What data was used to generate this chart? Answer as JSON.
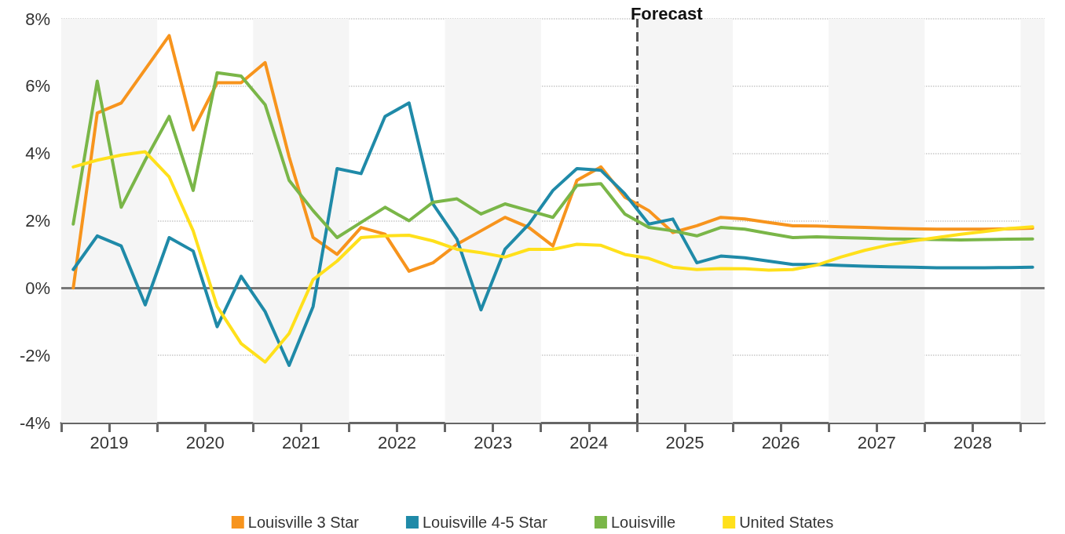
{
  "chart_data": {
    "type": "line",
    "x": [
      2019.125,
      2019.375,
      2019.625,
      2019.875,
      2020.125,
      2020.375,
      2020.625,
      2020.875,
      2021.125,
      2021.375,
      2021.625,
      2021.875,
      2022.125,
      2022.375,
      2022.625,
      2022.875,
      2023.125,
      2023.375,
      2023.625,
      2023.875,
      2024.125,
      2024.375,
      2024.625,
      2024.875,
      2025.125,
      2025.375,
      2025.625,
      2025.875,
      2026.125,
      2026.375,
      2026.625,
      2026.875,
      2027.125,
      2027.375,
      2027.625,
      2027.875,
      2028.125,
      2028.375,
      2028.625,
      2028.875,
      2029.125
    ],
    "series": [
      {
        "name": "Louisville 3 Star",
        "color": "#f7941d",
        "values": [
          0.0,
          5.2,
          5.5,
          6.5,
          7.5,
          4.7,
          6.1,
          6.1,
          6.7,
          3.9,
          1.5,
          1.0,
          1.8,
          1.6,
          0.5,
          0.75,
          1.3,
          1.7,
          2.1,
          1.8,
          1.25,
          3.2,
          3.6,
          2.7,
          2.3,
          1.65,
          1.85,
          2.1,
          2.05,
          1.95,
          1.85,
          1.84,
          1.82,
          1.8,
          1.78,
          1.76,
          1.75,
          1.75,
          1.75,
          1.76,
          1.78
        ]
      },
      {
        "name": "Louisville 4-5 Star",
        "color": "#1f8aa8",
        "values": [
          0.55,
          1.55,
          1.25,
          -0.5,
          1.5,
          1.1,
          -1.15,
          0.35,
          -0.7,
          -2.3,
          -0.55,
          3.55,
          3.4,
          5.1,
          5.5,
          2.5,
          1.45,
          -0.65,
          1.15,
          1.9,
          2.9,
          3.55,
          3.5,
          2.8,
          1.9,
          2.05,
          0.75,
          0.95,
          0.9,
          0.8,
          0.7,
          0.7,
          0.67,
          0.65,
          0.63,
          0.62,
          0.6,
          0.6,
          0.6,
          0.61,
          0.62
        ]
      },
      {
        "name": "Louisville",
        "color": "#7ab648",
        "values": [
          1.9,
          6.15,
          2.4,
          3.8,
          5.1,
          2.9,
          6.4,
          6.3,
          5.45,
          3.2,
          2.3,
          1.5,
          1.95,
          2.4,
          2.0,
          2.55,
          2.65,
          2.2,
          2.5,
          2.3,
          2.1,
          3.05,
          3.1,
          2.2,
          1.8,
          1.7,
          1.55,
          1.8,
          1.75,
          1.62,
          1.5,
          1.52,
          1.5,
          1.48,
          1.46,
          1.45,
          1.44,
          1.43,
          1.44,
          1.45,
          1.46
        ]
      },
      {
        "name": "United States",
        "color": "#ffe01b",
        "values": [
          3.6,
          3.8,
          3.95,
          4.05,
          3.3,
          1.7,
          -0.55,
          -1.65,
          -2.2,
          -1.35,
          0.25,
          0.8,
          1.5,
          1.55,
          1.57,
          1.4,
          1.15,
          1.05,
          0.92,
          1.15,
          1.15,
          1.3,
          1.27,
          1.0,
          0.88,
          0.62,
          0.55,
          0.58,
          0.57,
          0.53,
          0.55,
          0.68,
          0.92,
          1.12,
          1.28,
          1.4,
          1.5,
          1.6,
          1.68,
          1.77,
          1.82
        ]
      }
    ],
    "xlim": [
      2019,
      2029.25
    ],
    "xticks": [
      {
        "value": 2019,
        "label": null
      },
      {
        "value": 2019.5,
        "label": "2019"
      },
      {
        "value": 2020,
        "label": null
      },
      {
        "value": 2020.5,
        "label": "2020"
      },
      {
        "value": 2021,
        "label": null
      },
      {
        "value": 2021.5,
        "label": "2021"
      },
      {
        "value": 2022,
        "label": null
      },
      {
        "value": 2022.5,
        "label": "2022"
      },
      {
        "value": 2023,
        "label": null
      },
      {
        "value": 2023.5,
        "label": "2023"
      },
      {
        "value": 2024,
        "label": null
      },
      {
        "value": 2024.5,
        "label": "2024"
      },
      {
        "value": 2025,
        "label": null
      },
      {
        "value": 2025.5,
        "label": "2025"
      },
      {
        "value": 2026,
        "label": null
      },
      {
        "value": 2026.5,
        "label": "2026"
      },
      {
        "value": 2027,
        "label": null
      },
      {
        "value": 2027.5,
        "label": "2027"
      },
      {
        "value": 2028,
        "label": null
      },
      {
        "value": 2028.5,
        "label": "2028"
      },
      {
        "value": 2029,
        "label": null
      }
    ],
    "ylim": [
      -4,
      8
    ],
    "yticks": [
      {
        "value": -4,
        "label": "-4%"
      },
      {
        "value": -2,
        "label": "-2%"
      },
      {
        "value": 0,
        "label": "0%"
      },
      {
        "value": 2,
        "label": "2%"
      },
      {
        "value": 4,
        "label": "4%"
      },
      {
        "value": 6,
        "label": "6%"
      },
      {
        "value": 8,
        "label": "8%"
      }
    ],
    "bands": [
      {
        "axis": "x",
        "from": 2019,
        "to": 2020,
        "color": "#f5f5f5"
      },
      {
        "axis": "x",
        "from": 2021,
        "to": 2022,
        "color": "#f5f5f5"
      },
      {
        "axis": "x",
        "from": 2023,
        "to": 2024,
        "color": "#f5f5f5"
      },
      {
        "axis": "x",
        "from": 2025,
        "to": 2026,
        "color": "#f5f5f5"
      },
      {
        "axis": "x",
        "from": 2027,
        "to": 2028,
        "color": "#f5f5f5"
      },
      {
        "axis": "x",
        "from": 2029,
        "to": 2029.25,
        "color": "#f5f5f5"
      }
    ],
    "ref_lines": [
      {
        "axis": "y",
        "value": 0,
        "color": "#777777",
        "line_style": "solid"
      },
      {
        "axis": "x",
        "value": 2025,
        "label": "Forecast",
        "color": "#555555",
        "line_style": "dashed"
      }
    ],
    "grid": "y",
    "legend": "bottom",
    "marker": "none",
    "line_style": "solid"
  }
}
